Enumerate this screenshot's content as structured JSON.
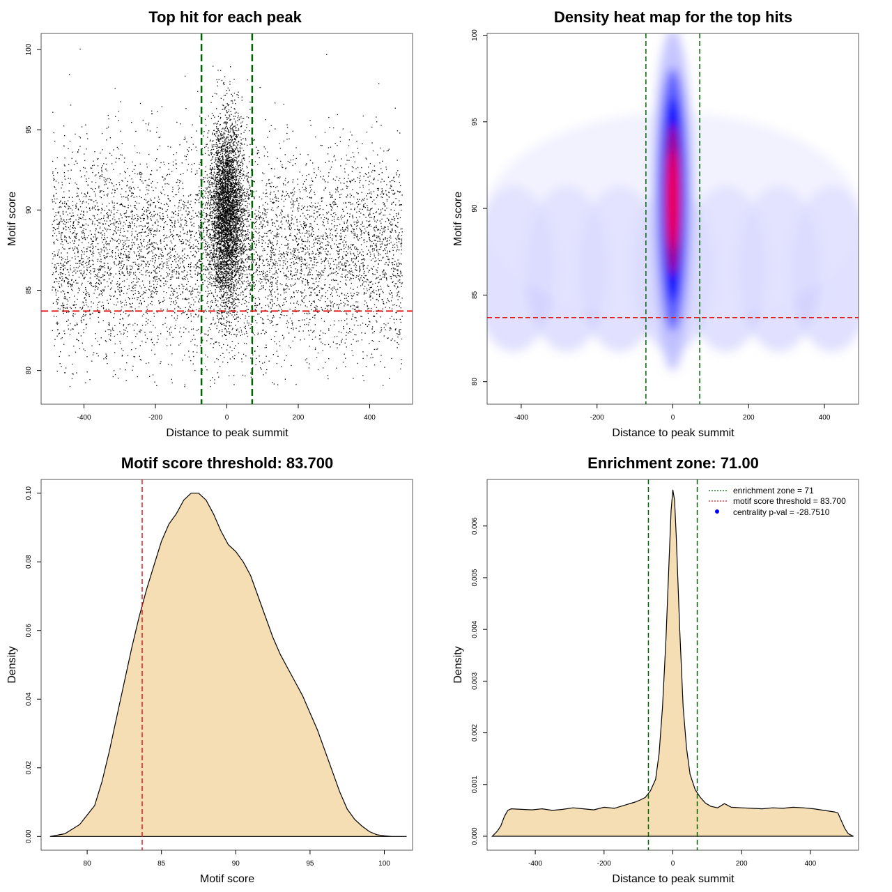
{
  "chart_data": [
    {
      "type": "scatter",
      "title": "Top hit for each peak",
      "xlabel": "Distance to peak summit",
      "ylabel": "Motif score",
      "xlim": [
        -520,
        520
      ],
      "ylim": [
        77.9,
        101
      ],
      "xticks": [
        -400,
        -200,
        0,
        200,
        400
      ],
      "yticks": [
        80,
        85,
        90,
        95,
        100
      ],
      "xtick_labels": [
        "-400",
        "-200",
        "0",
        "200",
        "400"
      ],
      "ytick_labels": [
        "80",
        "85",
        "90",
        "95",
        "100"
      ],
      "reference_lines": {
        "vertical": [
          -71,
          71
        ],
        "horizontal": [
          83.7
        ]
      },
      "distribution": {
        "background_points": 6500,
        "background_x_range": [
          -490,
          490
        ],
        "background_score_center": 87.5,
        "background_score_sd": 3.2,
        "central_points": 4200,
        "central_x_center": 0,
        "central_x_sd": 24,
        "central_score_center": 90,
        "central_score_sd": 2.9
      },
      "colors": {
        "points": "#000000",
        "vline": "#006400",
        "hline": "#e31a1c"
      }
    },
    {
      "type": "heatmap",
      "title": "Density heat map for the top hits",
      "xlabel": "Distance to peak summit",
      "ylabel": "Motif score",
      "xlim": [
        -490,
        490
      ],
      "ylim": [
        78.7,
        100.1
      ],
      "xticks": [
        -400,
        -200,
        0,
        200,
        400
      ],
      "yticks": [
        80,
        85,
        90,
        95,
        100
      ],
      "xtick_labels": [
        "-400",
        "-200",
        "0",
        "200",
        "400"
      ],
      "ytick_labels": [
        "80",
        "85",
        "90",
        "95",
        "100"
      ],
      "reference_lines": {
        "vertical": [
          -71,
          71
        ],
        "horizontal": [
          83.7
        ]
      },
      "hotspot": {
        "x": 0,
        "y": 90.5,
        "x_sd": 17,
        "y_sd": 3.8
      },
      "background_band": {
        "y_center": 86.5,
        "y_sd": 3
      },
      "colors": {
        "low": "#ffffff",
        "mid": "#0000ff",
        "high": "#ff0000",
        "vline": "#006400",
        "hline": "#e31a1c"
      }
    },
    {
      "type": "area",
      "title": "Motif score threshold: 83.700",
      "xlabel": "Motif score",
      "ylabel": "Density",
      "xlim": [
        76.9,
        101.9
      ],
      "ylim": [
        -0.004,
        0.104
      ],
      "xticks": [
        80,
        85,
        90,
        95,
        100
      ],
      "yticks": [
        0.0,
        0.02,
        0.04,
        0.06,
        0.08,
        0.1
      ],
      "xtick_labels": [
        "80",
        "85",
        "90",
        "95",
        "100"
      ],
      "ytick_labels": [
        "0.00",
        "0.02",
        "0.04",
        "0.06",
        "0.08",
        "0.10"
      ],
      "x": [
        77.5,
        78.5,
        79.5,
        80.5,
        81.0,
        81.5,
        82.0,
        82.5,
        83.0,
        83.5,
        84.0,
        84.5,
        85.0,
        85.5,
        86.0,
        86.5,
        87.0,
        87.5,
        88.0,
        88.5,
        89.0,
        89.5,
        90.0,
        90.5,
        91.0,
        91.5,
        92.0,
        92.5,
        93.0,
        93.5,
        94.0,
        94.5,
        95.0,
        95.5,
        96.0,
        96.5,
        97.0,
        97.5,
        98.0,
        98.5,
        99.0,
        99.5,
        100.0,
        100.5,
        101.5
      ],
      "y": [
        0.0,
        0.0008,
        0.0035,
        0.009,
        0.016,
        0.025,
        0.035,
        0.045,
        0.055,
        0.064,
        0.072,
        0.079,
        0.086,
        0.091,
        0.094,
        0.098,
        0.1,
        0.1,
        0.098,
        0.094,
        0.089,
        0.085,
        0.083,
        0.08,
        0.076,
        0.07,
        0.064,
        0.058,
        0.053,
        0.049,
        0.045,
        0.041,
        0.036,
        0.031,
        0.025,
        0.019,
        0.013,
        0.008,
        0.005,
        0.003,
        0.0014,
        0.0005,
        0.0002,
        0.0,
        0.0
      ],
      "reference_lines": {
        "vertical": [
          83.7
        ]
      },
      "colors": {
        "fill": "#f5deb3",
        "line": "#000000",
        "vline": "#e31a1c"
      }
    },
    {
      "type": "area",
      "title": "Enrichment zone: 71.00",
      "xlabel": "Distance to peak summit",
      "ylabel": "Density",
      "xlim": [
        -540,
        540
      ],
      "ylim": [
        -0.00027,
        0.0069
      ],
      "xticks": [
        -400,
        -200,
        0,
        200,
        400
      ],
      "yticks": [
        0.0,
        0.001,
        0.002,
        0.003,
        0.004,
        0.005,
        0.006
      ],
      "xtick_labels": [
        "-400",
        "-200",
        "0",
        "200",
        "400"
      ],
      "ytick_labels": [
        "0.000",
        "0.001",
        "0.002",
        "0.003",
        "0.004",
        "0.005",
        "0.006"
      ],
      "x": [
        -525,
        -510,
        -500,
        -490,
        -480,
        -470,
        -440,
        -410,
        -380,
        -350,
        -320,
        -290,
        -260,
        -230,
        -200,
        -170,
        -140,
        -110,
        -95,
        -80,
        -65,
        -50,
        -40,
        -30,
        -20,
        -10,
        -5,
        0,
        5,
        10,
        20,
        30,
        40,
        50,
        65,
        80,
        95,
        110,
        130,
        150,
        170,
        200,
        230,
        260,
        290,
        320,
        350,
        380,
        410,
        440,
        470,
        480,
        490,
        500,
        510,
        525
      ],
      "y": [
        0.0,
        0.0001,
        0.0002,
        0.00038,
        0.0005,
        0.00053,
        0.00052,
        0.00051,
        0.00053,
        0.0005,
        0.00052,
        0.00055,
        0.00053,
        0.00051,
        0.00056,
        0.00054,
        0.0006,
        0.00066,
        0.0007,
        0.00075,
        0.00088,
        0.0011,
        0.0016,
        0.0025,
        0.0038,
        0.0055,
        0.0063,
        0.0067,
        0.0065,
        0.0058,
        0.004,
        0.0025,
        0.0017,
        0.0012,
        0.0009,
        0.00075,
        0.00064,
        0.00058,
        0.00055,
        0.00063,
        0.00056,
        0.00055,
        0.00054,
        0.00053,
        0.00055,
        0.00054,
        0.00056,
        0.00055,
        0.00053,
        0.0005,
        0.00047,
        0.00045,
        0.0003,
        0.00015,
        5e-05,
        0.0
      ],
      "reference_lines": {
        "vertical": [
          -71,
          71
        ]
      },
      "legend": {
        "position": "top-right",
        "entries": [
          {
            "label": "enrichment zone = 71",
            "style": "dotted-line",
            "color": "#006400"
          },
          {
            "label": "motif score threshold = 83.700",
            "style": "dotted-line",
            "color": "#e31a1c"
          },
          {
            "label": "centrality p-val = -28.7510",
            "style": "point",
            "color": "#0000ff"
          }
        ]
      },
      "colors": {
        "fill": "#f5deb3",
        "line": "#000000",
        "vline": "#006400"
      }
    }
  ]
}
